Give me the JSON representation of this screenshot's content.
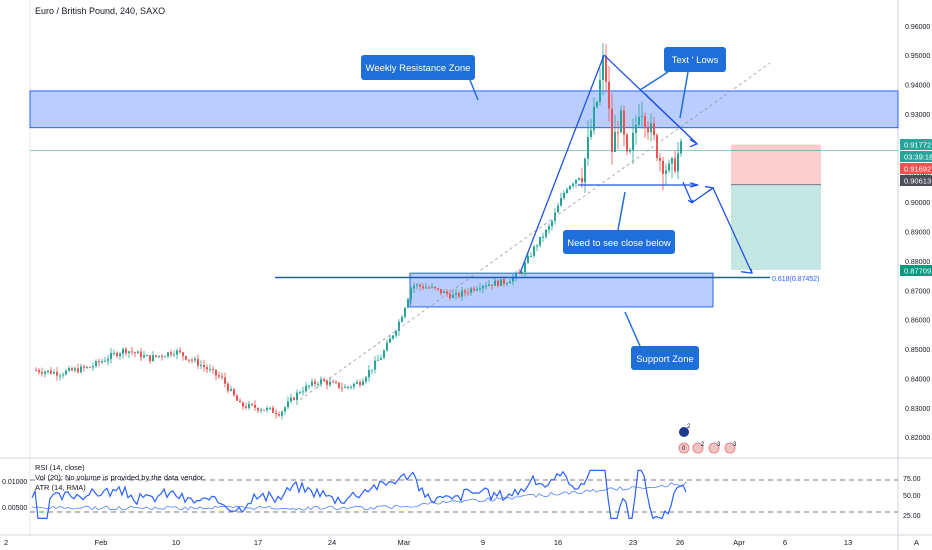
{
  "header": {
    "symbol_title": "Euro / British Pound, 240, SAXO"
  },
  "colors": {
    "up": "#26a69a",
    "down": "#ef5350",
    "zone_fill": "#2962ff",
    "annotation_blue": "#1e53e5",
    "callout_bg": "#1e6fd9",
    "rsi_line": "#2962ff",
    "atr_line": "#2962ff",
    "target_fill": "#b2dfdb",
    "stop_fill": "#f8c9c9"
  },
  "annotations": {
    "weekly_resistance": "Weekly Resistance Zone",
    "text_lows": "Text  ' Lows",
    "need_close": "Need to see close below",
    "support_zone": "Support Zone",
    "fib_label": "0.618(0.87452)"
  },
  "indicators": {
    "rsi_label": "RSI (14, close)",
    "vol_label": "Vol (20): No volume is provided by the data vendor.",
    "atr_label": "ATR (14, RMA)"
  },
  "price_badges": {
    "current": "0.91772",
    "countdown": "03:39:18",
    "red": "0.91692",
    "dark": "0.90613",
    "green": "0.87709"
  },
  "event_icons": [
    "2",
    "0",
    "2",
    "3",
    "3"
  ],
  "bottom_left": "2",
  "corner_label": "A",
  "chart_data": {
    "type": "candlestick",
    "title": "Euro / British Pound, 240, SAXO",
    "y_ticks": [
      "0.96000",
      "0.95000",
      "0.94000",
      "0.93000",
      "0.92000",
      "0.91000",
      "0.90000",
      "0.89000",
      "0.88000",
      "0.87000",
      "0.86000",
      "0.85000",
      "0.84000",
      "0.83000",
      "0.82000"
    ],
    "ylim": [
      0.8165,
      0.9635
    ],
    "x_ticks": [
      "Feb",
      "10",
      "17",
      "24",
      "Mar",
      "9",
      "16",
      "23",
      "26",
      "Apr",
      "6",
      "13"
    ],
    "rsi_ticks": [
      "75.00",
      "50.00",
      "25.00"
    ],
    "atr_ticks": [
      "0.01000",
      "0.00500"
    ],
    "rsi_levels": [
      70,
      30
    ],
    "weekly_resistance_zone": [
      0.9255,
      0.938
    ],
    "support_zone": [
      0.8645,
      0.876
    ],
    "fib_level": 0.87452,
    "key_points": [
      {
        "label": "start",
        "value": 0.843
      },
      {
        "label": "low",
        "value": 0.8285
      },
      {
        "label": "rally-top",
        "value": 0.875
      },
      {
        "label": "peak",
        "value": 0.9502
      },
      {
        "label": "last",
        "value": 0.9177
      }
    ],
    "trade": {
      "entry": 0.9061,
      "stop": 0.9169,
      "target": 0.8771
    }
  }
}
